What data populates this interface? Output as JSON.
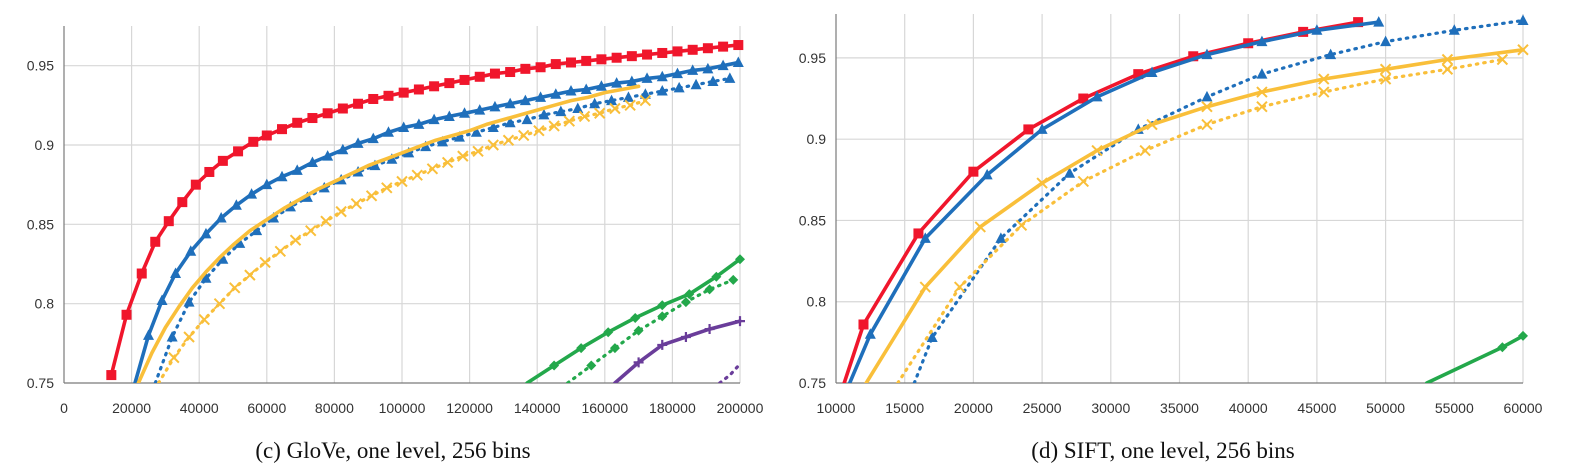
{
  "colors": {
    "red": "#f0162c",
    "blue": "#1f6fbb",
    "yellow": "#f9bf3a",
    "green": "#23a84b",
    "purple": "#6a3d9a"
  },
  "chart_data": [
    {
      "type": "line",
      "panel": "c",
      "caption": "(c) GloVe, one level, 256 bins",
      "xlabel": "",
      "ylabel": "",
      "xlim": [
        0,
        200000
      ],
      "ylim": [
        0.75,
        0.975
      ],
      "grid": true,
      "x_ticks": [
        0,
        20000,
        40000,
        60000,
        80000,
        100000,
        120000,
        140000,
        160000,
        180000,
        200000
      ],
      "x_tick_labels": [
        "0",
        "20000",
        "40000",
        "60000",
        "80000",
        "100000",
        "120000",
        "140000",
        "160000",
        "180000",
        "200000"
      ],
      "y_ticks": [
        0.75,
        0.8,
        0.85,
        0.9,
        0.95
      ],
      "y_tick_labels": [
        "0.75",
        "0.8",
        "0.85",
        "0.9",
        "0.95"
      ],
      "series": [
        {
          "name": "red-solid-square",
          "color": "red",
          "dash": "solid",
          "marker": "square",
          "x": [
            14000,
            18500,
            23000,
            27000,
            31000,
            35000,
            39000,
            43000,
            47000,
            51500,
            56000,
            60000,
            64500,
            69000,
            73500,
            78000,
            82500,
            87000,
            91500,
            96000,
            100500,
            105000,
            109500,
            114000,
            118500,
            123000,
            127500,
            132000,
            136500,
            141000,
            145500,
            150000,
            154500,
            159000,
            163500,
            168000,
            172500,
            177000,
            181500,
            186000,
            190500,
            195000,
            199500
          ],
          "y": [
            0.755,
            0.793,
            0.819,
            0.839,
            0.852,
            0.864,
            0.875,
            0.883,
            0.89,
            0.896,
            0.902,
            0.906,
            0.91,
            0.914,
            0.917,
            0.92,
            0.923,
            0.926,
            0.929,
            0.931,
            0.933,
            0.935,
            0.937,
            0.939,
            0.941,
            0.943,
            0.945,
            0.946,
            0.948,
            0.949,
            0.951,
            0.952,
            0.953,
            0.954,
            0.955,
            0.956,
            0.957,
            0.958,
            0.959,
            0.96,
            0.961,
            0.962,
            0.963
          ]
        },
        {
          "name": "blue-solid-triangle",
          "color": "blue",
          "dash": "solid",
          "marker": "triangle",
          "x": [
            21000,
            25000,
            29000,
            33000,
            37500,
            42000,
            46500,
            51000,
            55500,
            60000,
            64500,
            69000,
            73500,
            78000,
            82500,
            87000,
            91500,
            96000,
            100500,
            105000,
            109500,
            114000,
            118500,
            123000,
            127500,
            132000,
            136500,
            141000,
            145500,
            150000,
            154500,
            159000,
            163500,
            168000,
            172500,
            177000,
            181500,
            186000,
            190500,
            195000,
            199500
          ],
          "y": [
            0.75,
            0.78,
            0.802,
            0.819,
            0.833,
            0.844,
            0.854,
            0.862,
            0.869,
            0.875,
            0.88,
            0.884,
            0.889,
            0.893,
            0.897,
            0.901,
            0.904,
            0.908,
            0.911,
            0.913,
            0.916,
            0.918,
            0.92,
            0.922,
            0.924,
            0.926,
            0.928,
            0.93,
            0.932,
            0.934,
            0.935,
            0.937,
            0.939,
            0.94,
            0.942,
            0.943,
            0.945,
            0.947,
            0.948,
            0.95,
            0.952
          ]
        },
        {
          "name": "blue-dotted-triangle",
          "color": "blue",
          "dash": "dotted",
          "marker": "triangle",
          "x": [
            27000,
            32000,
            37000,
            42000,
            47000,
            52000,
            57000,
            62000,
            67000,
            72000,
            77000,
            82000,
            87000,
            92000,
            97000,
            102000,
            107000,
            112000,
            117000,
            122000,
            127000,
            132000,
            137000,
            142000,
            147000,
            152000,
            157000,
            162000,
            167000,
            172000,
            177000,
            182000,
            187000,
            192000,
            197000
          ],
          "y": [
            0.75,
            0.779,
            0.801,
            0.816,
            0.828,
            0.838,
            0.846,
            0.854,
            0.861,
            0.867,
            0.873,
            0.878,
            0.883,
            0.887,
            0.891,
            0.895,
            0.899,
            0.902,
            0.905,
            0.908,
            0.911,
            0.914,
            0.916,
            0.919,
            0.921,
            0.923,
            0.926,
            0.928,
            0.93,
            0.932,
            0.934,
            0.936,
            0.938,
            0.94,
            0.942
          ]
        },
        {
          "name": "yellow-solid",
          "color": "yellow",
          "dash": "solid",
          "marker": "none",
          "x": [
            22000,
            26000,
            30000,
            34000,
            38000,
            42000,
            46000,
            50000,
            55000,
            60000,
            65000,
            70000,
            75000,
            80000,
            85000,
            90000,
            95000,
            100000,
            105000,
            110000,
            115000,
            120000,
            125000,
            130000,
            135000,
            140000,
            145000,
            150000,
            155000,
            160000,
            165000,
            170000
          ],
          "y": [
            0.75,
            0.769,
            0.785,
            0.798,
            0.81,
            0.82,
            0.829,
            0.837,
            0.846,
            0.853,
            0.86,
            0.866,
            0.872,
            0.877,
            0.882,
            0.887,
            0.891,
            0.895,
            0.899,
            0.903,
            0.906,
            0.909,
            0.913,
            0.916,
            0.919,
            0.922,
            0.925,
            0.928,
            0.93,
            0.933,
            0.935,
            0.937
          ]
        },
        {
          "name": "yellow-dotted-x",
          "color": "yellow",
          "dash": "dotted",
          "marker": "x",
          "x": [
            28000,
            32500,
            37000,
            41500,
            46000,
            50500,
            55000,
            59500,
            64000,
            68500,
            73000,
            77500,
            82000,
            86500,
            91000,
            95500,
            100000,
            104500,
            109000,
            113500,
            118000,
            122500,
            127000,
            131500,
            136000,
            140500,
            145000,
            149500,
            154000,
            158500,
            163000,
            167500,
            172000
          ],
          "y": [
            0.75,
            0.766,
            0.779,
            0.79,
            0.8,
            0.81,
            0.818,
            0.826,
            0.833,
            0.84,
            0.846,
            0.852,
            0.858,
            0.863,
            0.868,
            0.873,
            0.877,
            0.881,
            0.885,
            0.889,
            0.893,
            0.896,
            0.9,
            0.903,
            0.906,
            0.909,
            0.912,
            0.915,
            0.918,
            0.92,
            0.923,
            0.925,
            0.928
          ]
        },
        {
          "name": "green-solid-diamond",
          "color": "green",
          "dash": "solid",
          "marker": "diamond",
          "x": [
            137000,
            145000,
            153000,
            161000,
            169000,
            177000,
            185000,
            193000,
            200000
          ],
          "y": [
            0.75,
            0.761,
            0.772,
            0.782,
            0.791,
            0.799,
            0.806,
            0.817,
            0.828
          ]
        },
        {
          "name": "green-dotted-diamond",
          "color": "green",
          "dash": "dotted",
          "marker": "diamond",
          "x": [
            149000,
            156000,
            163000,
            170000,
            177000,
            184000,
            191000,
            198000
          ],
          "y": [
            0.75,
            0.761,
            0.772,
            0.783,
            0.792,
            0.801,
            0.809,
            0.815
          ]
        },
        {
          "name": "purple-solid-plus",
          "color": "purple",
          "dash": "solid",
          "marker": "plus",
          "x": [
            163000,
            170000,
            177000,
            184000,
            191000,
            200000
          ],
          "y": [
            0.75,
            0.763,
            0.774,
            0.779,
            0.784,
            0.789
          ]
        },
        {
          "name": "purple-dotted",
          "color": "purple",
          "dash": "dotted",
          "marker": "none",
          "x": [
            194000,
            197000,
            200000
          ],
          "y": [
            0.75,
            0.755,
            0.762
          ]
        }
      ]
    },
    {
      "type": "line",
      "panel": "d",
      "caption": "(d) SIFT, one level, 256 bins",
      "xlabel": "",
      "ylabel": "",
      "xlim": [
        10000,
        60000
      ],
      "ylim": [
        0.75,
        0.977
      ],
      "grid": true,
      "x_ticks": [
        10000,
        15000,
        20000,
        25000,
        30000,
        35000,
        40000,
        45000,
        50000,
        55000,
        60000
      ],
      "x_tick_labels": [
        "10000",
        "15000",
        "20000",
        "25000",
        "30000",
        "35000",
        "40000",
        "45000",
        "50000",
        "55000",
        "60000"
      ],
      "y_ticks": [
        0.75,
        0.8,
        0.85,
        0.9,
        0.95
      ],
      "y_tick_labels": [
        "0.75",
        "0.8",
        "0.85",
        "0.9",
        "0.95"
      ],
      "series": [
        {
          "name": "red-solid-square",
          "color": "red",
          "dash": "solid",
          "marker": "square",
          "x": [
            10600,
            12000,
            16000,
            20000,
            24000,
            28000,
            32000,
            36000,
            40000,
            44000,
            48000
          ],
          "y": [
            0.75,
            0.786,
            0.842,
            0.88,
            0.906,
            0.925,
            0.94,
            0.951,
            0.959,
            0.966,
            0.972
          ]
        },
        {
          "name": "blue-solid-triangle",
          "color": "blue",
          "dash": "solid",
          "marker": "triangle",
          "x": [
            11000,
            12500,
            16500,
            21000,
            25000,
            29000,
            33000,
            37000,
            41000,
            45000,
            49500
          ],
          "y": [
            0.75,
            0.78,
            0.839,
            0.878,
            0.906,
            0.926,
            0.941,
            0.952,
            0.96,
            0.967,
            0.972
          ]
        },
        {
          "name": "blue-dotted-triangle",
          "color": "blue",
          "dash": "dotted",
          "marker": "triangle",
          "x": [
            15700,
            17000,
            22000,
            27000,
            32000,
            37000,
            41000,
            46000,
            50000,
            55000,
            60000
          ],
          "y": [
            0.75,
            0.778,
            0.839,
            0.879,
            0.906,
            0.926,
            0.94,
            0.952,
            0.96,
            0.967,
            0.973
          ]
        },
        {
          "name": "yellow-solid-x",
          "color": "yellow",
          "dash": "solid",
          "marker": "x",
          "x": [
            12200,
            16500,
            20500,
            25000,
            29000,
            33000,
            37000,
            41000,
            45500,
            50000,
            54500,
            60000
          ],
          "y": [
            0.75,
            0.809,
            0.846,
            0.873,
            0.893,
            0.909,
            0.92,
            0.929,
            0.937,
            0.943,
            0.949,
            0.955
          ]
        },
        {
          "name": "yellow-dotted-x",
          "color": "yellow",
          "dash": "dotted",
          "marker": "x",
          "x": [
            14500,
            19000,
            23500,
            28000,
            32500,
            37000,
            41000,
            45500,
            50000,
            54500,
            58500
          ],
          "y": [
            0.75,
            0.809,
            0.847,
            0.874,
            0.893,
            0.909,
            0.92,
            0.929,
            0.937,
            0.943,
            0.949
          ]
        },
        {
          "name": "green-solid-diamond",
          "color": "green",
          "dash": "solid",
          "marker": "diamond",
          "x": [
            53000,
            58500,
            60000
          ],
          "y": [
            0.75,
            0.772,
            0.779
          ]
        }
      ]
    }
  ]
}
